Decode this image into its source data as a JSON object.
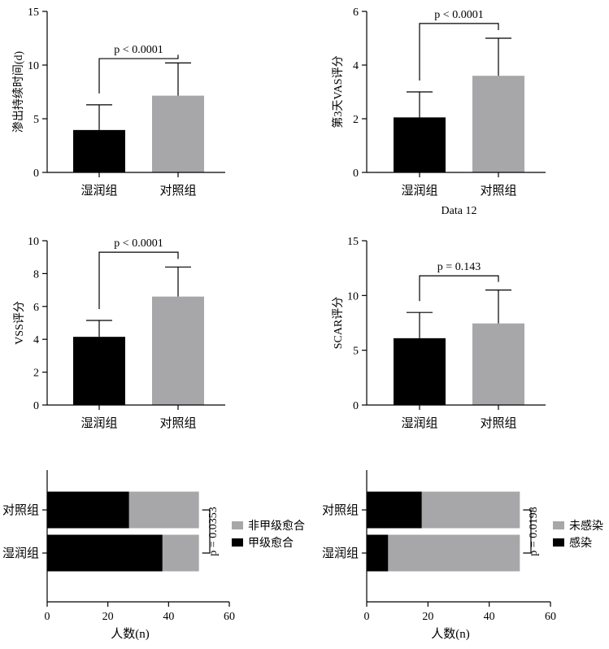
{
  "colors": {
    "black": "#000000",
    "gray": "#a7a7aa"
  },
  "chart_data": [
    {
      "id": "p1",
      "type": "bar",
      "categories": [
        "湿润组",
        "对照组"
      ],
      "values": [
        3.95,
        7.15
      ],
      "errors": [
        2.35,
        3.05
      ],
      "colors": [
        "#000000",
        "#a7a7aa"
      ],
      "ylabel": "渗出持续时间(d)",
      "xlabel": "",
      "ylim": [
        0,
        15
      ],
      "yticks": [
        0,
        5,
        10,
        15
      ],
      "annotation": "p < 0.0001",
      "bracket_top": 10.6
    },
    {
      "id": "p2",
      "type": "bar",
      "categories": [
        "湿润组",
        "对照组"
      ],
      "values": [
        2.05,
        3.6
      ],
      "errors": [
        0.95,
        1.4
      ],
      "colors": [
        "#000000",
        "#a7a7aa"
      ],
      "ylabel": "第3天VAS评分",
      "xlabel": "Data 12",
      "ylim": [
        0,
        6
      ],
      "yticks": [
        0,
        2,
        4,
        6
      ],
      "annotation": "p < 0.0001",
      "bracket_top": 5.55
    },
    {
      "id": "p3",
      "type": "bar",
      "categories": [
        "湿润组",
        "对照组"
      ],
      "values": [
        4.15,
        6.6
      ],
      "errors": [
        1.0,
        1.8
      ],
      "colors": [
        "#000000",
        "#a7a7aa"
      ],
      "ylabel": "VSS评分",
      "xlabel": "",
      "ylim": [
        0,
        10
      ],
      "yticks": [
        0,
        2,
        4,
        6,
        8,
        10
      ],
      "annotation": "p < 0.0001",
      "bracket_top": 9.3
    },
    {
      "id": "p4",
      "type": "bar",
      "categories": [
        "湿润组",
        "对照组"
      ],
      "values": [
        6.1,
        7.45
      ],
      "errors": [
        2.35,
        3.05
      ],
      "colors": [
        "#000000",
        "#a7a7aa"
      ],
      "ylabel": "SCAR评分",
      "xlabel": "",
      "ylim": [
        0,
        15
      ],
      "yticks": [
        0,
        5,
        10,
        15
      ],
      "annotation": "p = 0.143",
      "bracket_top": 11.8
    },
    {
      "id": "p5",
      "type": "bar-horizontal-stacked",
      "categories": [
        "对照组",
        "湿润组"
      ],
      "series": [
        {
          "name": "甲级愈合",
          "values": [
            27,
            38
          ],
          "color": "#000000"
        },
        {
          "name": "非甲级愈合",
          "values": [
            23,
            12
          ],
          "color": "#a7a7aa"
        }
      ],
      "legend": [
        "非甲级愈合",
        "甲级愈合"
      ],
      "xlabel": "人数(n)",
      "xlim": [
        0,
        60
      ],
      "xticks": [
        0,
        20,
        40,
        60
      ],
      "annotation": "p = 0.0353"
    },
    {
      "id": "p6",
      "type": "bar-horizontal-stacked",
      "categories": [
        "对照组",
        "湿润组"
      ],
      "series": [
        {
          "name": "感染",
          "values": [
            18,
            7
          ],
          "color": "#000000"
        },
        {
          "name": "未感染",
          "values": [
            32,
            43
          ],
          "color": "#a7a7aa"
        }
      ],
      "legend": [
        "未感染",
        "感染"
      ],
      "xlabel": "人数(n)",
      "xlim": [
        0,
        60
      ],
      "xticks": [
        0,
        20,
        40,
        60
      ],
      "annotation": "p = 0.0198"
    }
  ]
}
